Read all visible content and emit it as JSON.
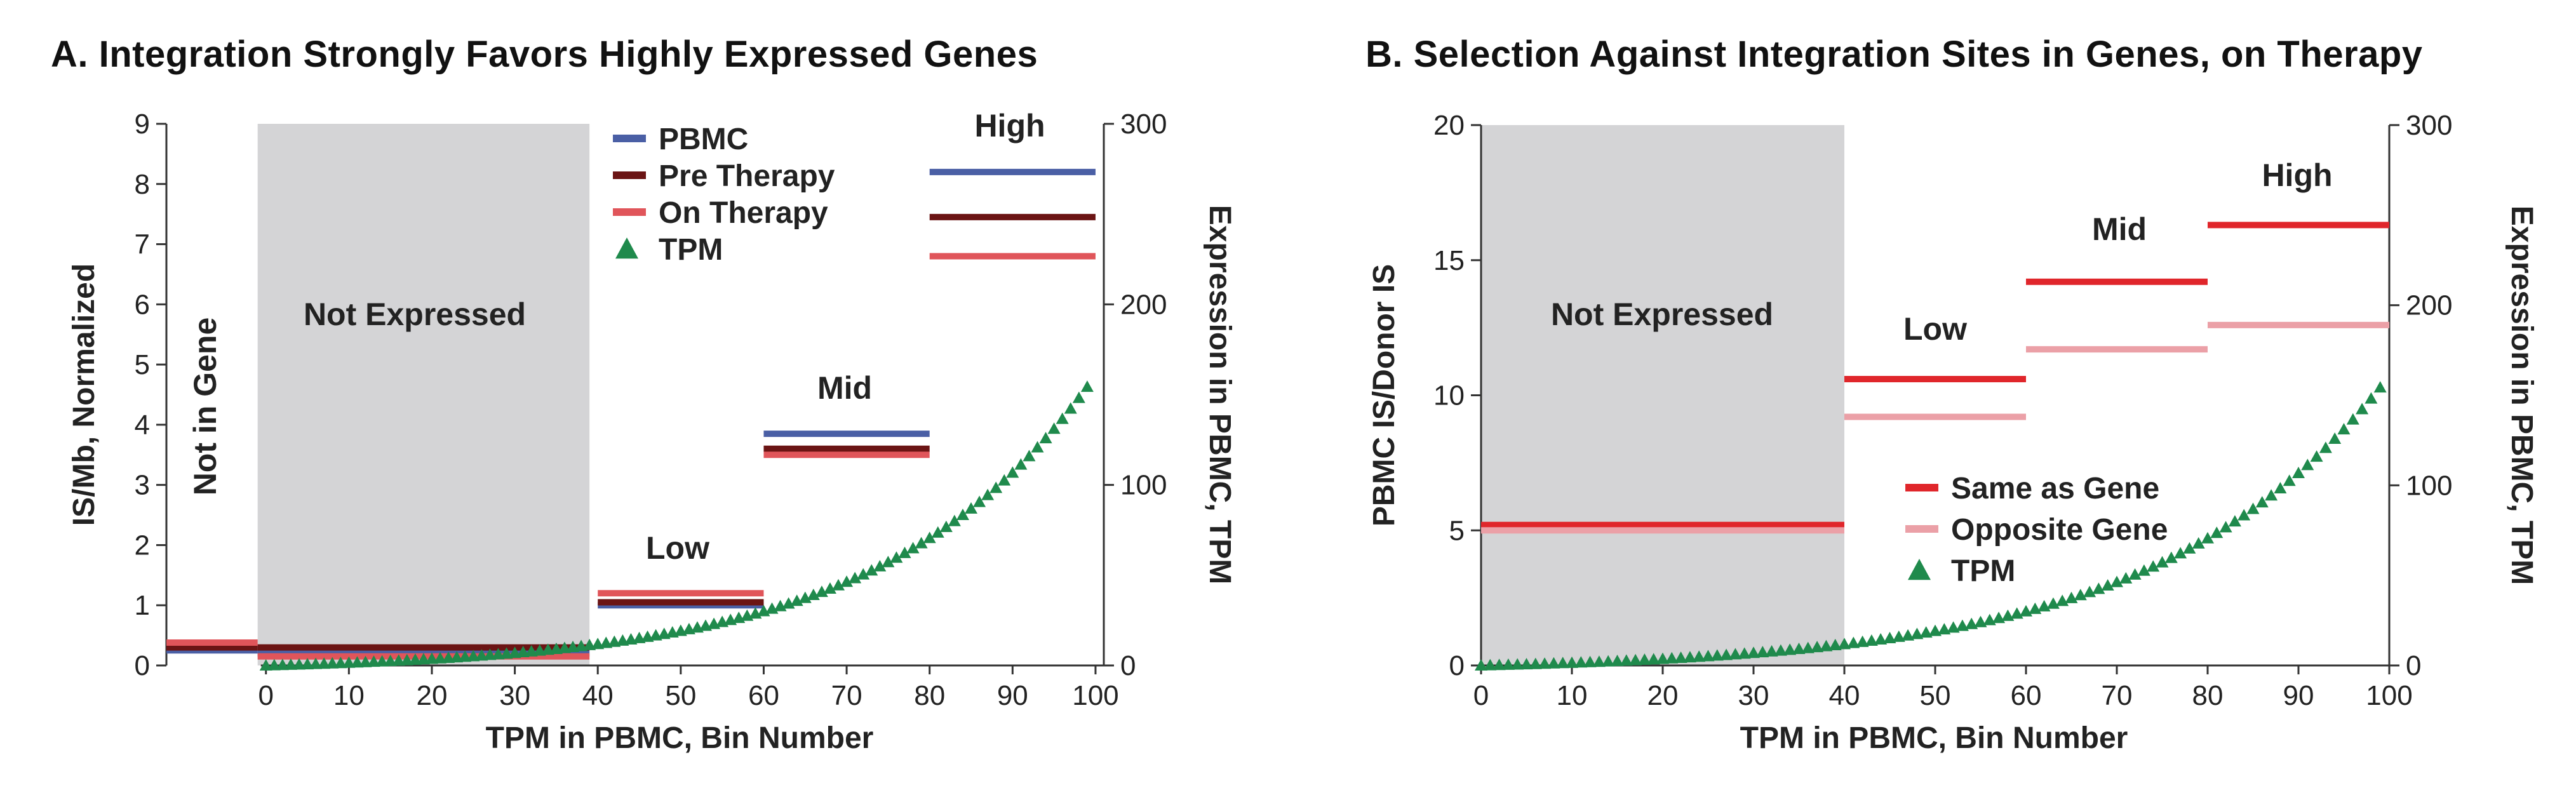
{
  "chart_data": [
    {
      "type": "line",
      "title": "A. Integration Strongly Favors Highly Expressed Genes",
      "xlabel": "TPM in PBMC, Bin Number",
      "ylabel": "IS/Mb, Normalized",
      "y2label": "Expression in PBMC, TPM",
      "xlim": [
        -12,
        101
      ],
      "ylim": [
        0,
        9
      ],
      "y2lim": [
        0,
        300
      ],
      "x_ticks": [
        "0",
        "10",
        "20",
        "30",
        "40",
        "50",
        "60",
        "70",
        "80",
        "90",
        "100"
      ],
      "y_ticks": [
        "0",
        "1",
        "2",
        "3",
        "4",
        "5",
        "6",
        "7",
        "8",
        "9"
      ],
      "y2_ticks": [
        "0",
        "100",
        "200",
        "300"
      ],
      "regions": [
        {
          "label": "Not in Gene",
          "x_start": -12,
          "x_end": -1,
          "shaded": false,
          "orientation": "vertical"
        },
        {
          "label": "Not Expressed",
          "x_start": -1,
          "x_end": 39,
          "shaded": true,
          "orientation": "horizontal"
        }
      ],
      "segment_labels": [
        "Low",
        "Mid",
        "High"
      ],
      "series": [
        {
          "name": "PBMC",
          "color": "#4a5fa5",
          "segments": [
            {
              "x": [
                -12,
                -1
              ],
              "y": 0.25
            },
            {
              "x": [
                -1,
                39
              ],
              "y": 0.2
            },
            {
              "x": [
                40,
                60
              ],
              "y": 1.0
            },
            {
              "x": [
                60,
                80
              ],
              "y": 3.85
            },
            {
              "x": [
                80,
                100
              ],
              "y": 8.2
            }
          ]
        },
        {
          "name": "Pre Therapy",
          "color": "#6b1414",
          "segments": [
            {
              "x": [
                -12,
                -1
              ],
              "y": 0.3
            },
            {
              "x": [
                -1,
                39
              ],
              "y": 0.3
            },
            {
              "x": [
                40,
                60
              ],
              "y": 1.05
            },
            {
              "x": [
                60,
                80
              ],
              "y": 3.6
            },
            {
              "x": [
                80,
                100
              ],
              "y": 7.45
            }
          ]
        },
        {
          "name": "On Therapy",
          "color": "#e0555a",
          "segments": [
            {
              "x": [
                -12,
                -1
              ],
              "y": 0.38
            },
            {
              "x": [
                -1,
                39
              ],
              "y": 0.15
            },
            {
              "x": [
                40,
                60
              ],
              "y": 1.2
            },
            {
              "x": [
                60,
                80
              ],
              "y": 3.5
            },
            {
              "x": [
                80,
                100
              ],
              "y": 6.8
            }
          ]
        }
      ],
      "legend": [
        "PBMC",
        "Pre Therapy",
        "On Therapy",
        "TPM"
      ],
      "tpm_series": {
        "name": "TPM",
        "color": "#1f8a4c",
        "axis": "right",
        "x_start": 0,
        "x_end": 99,
        "x_step": 1,
        "scale": 3,
        "k": 0.04
      }
    },
    {
      "type": "line",
      "title": "B. Selection Against Integration Sites in Genes, on Therapy",
      "xlabel": "TPM in PBMC, Bin Number",
      "ylabel": "PBMC IS/Donor IS",
      "y2label": "Expression in PBMC, TPM",
      "xlim": [
        0,
        100
      ],
      "ylim": [
        0,
        20
      ],
      "y2lim": [
        0,
        300
      ],
      "x_ticks": [
        "0",
        "10",
        "20",
        "30",
        "40",
        "50",
        "60",
        "70",
        "80",
        "90",
        "100"
      ],
      "y_ticks": [
        "0",
        "5",
        "10",
        "15",
        "20"
      ],
      "y2_ticks": [
        "0",
        "100",
        "200",
        "300"
      ],
      "regions": [
        {
          "label": "Not Expressed",
          "x_start": 0,
          "x_end": 40,
          "shaded": true,
          "orientation": "horizontal"
        }
      ],
      "segment_labels": [
        "Low",
        "Mid",
        "High"
      ],
      "series": [
        {
          "name": "Same as Gene",
          "color": "#e0262b",
          "segments": [
            {
              "x": [
                0,
                40
              ],
              "y": 5.2
            },
            {
              "x": [
                40,
                60
              ],
              "y": 10.6
            },
            {
              "x": [
                60,
                80
              ],
              "y": 14.2
            },
            {
              "x": [
                80,
                100
              ],
              "y": 16.3
            }
          ]
        },
        {
          "name": "Opposite Gene",
          "color": "#eba0a7",
          "segments": [
            {
              "x": [
                0,
                40
              ],
              "y": 5.0
            },
            {
              "x": [
                40,
                60
              ],
              "y": 9.2
            },
            {
              "x": [
                60,
                80
              ],
              "y": 11.7
            },
            {
              "x": [
                80,
                100
              ],
              "y": 12.6
            }
          ]
        }
      ],
      "legend": [
        "Same as Gene",
        "Opposite Gene",
        "TPM"
      ],
      "tpm_series": {
        "name": "TPM",
        "color": "#1f8a4c",
        "axis": "right",
        "x_start": 0,
        "x_end": 99,
        "x_step": 1,
        "scale": 3,
        "k": 0.04
      }
    }
  ]
}
